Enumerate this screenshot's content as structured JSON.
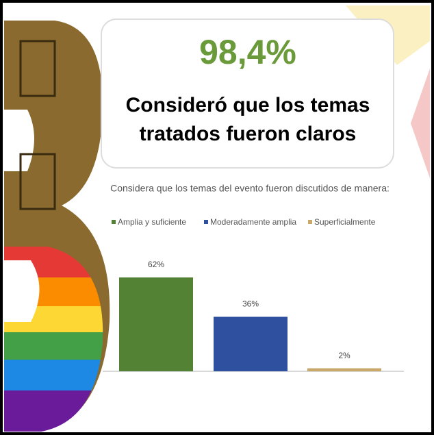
{
  "chart_data": {
    "type": "bar",
    "headline": "98,4%",
    "subheadline": [
      "Consideró que los temas",
      "tratados fueron claros"
    ],
    "title": "Considera que los temas del evento fueron discutidos de manera:",
    "series": [
      {
        "name": "Amplia y suficiente",
        "color": "#548235",
        "values": [
          62
        ],
        "value_labels": [
          "62%"
        ]
      },
      {
        "name": "Moderadamente amplia",
        "color": "#2f4f9f",
        "values": [
          36
        ],
        "value_labels": [
          "36%"
        ]
      },
      {
        "name": "Superficialmente",
        "color": "#c9a86a",
        "values": [
          2
        ],
        "value_labels": [
          "2%"
        ]
      }
    ]
  }
}
